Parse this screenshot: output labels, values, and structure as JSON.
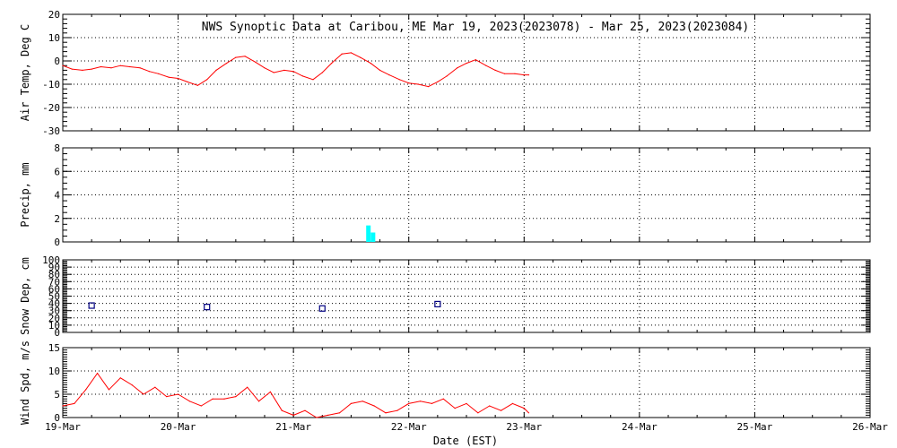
{
  "title": "NWS Synoptic Data at Caribou, ME   Mar 19, 2023(2023078) - Mar 25, 2023(2023084)",
  "xlabel": "Date (EST)",
  "x_ticks": [
    "19-Mar",
    "20-Mar",
    "21-Mar",
    "22-Mar",
    "23-Mar",
    "24-Mar",
    "25-Mar",
    "26-Mar"
  ],
  "colors": {
    "air_temp": "#ff0000",
    "precip": "#00ffff",
    "snow_depth": "#000080",
    "wind": "#ff0000",
    "grid": "#000000"
  },
  "chart_data": [
    {
      "type": "line",
      "ylabel": "Air Temp, Deg C",
      "ylim": [
        -30,
        20
      ],
      "yticks": [
        -30,
        -20,
        -10,
        0,
        10,
        20
      ],
      "grid": "dotted",
      "x_unit": "days since 19-Mar 00:00 EST",
      "x": [
        0,
        0.08,
        0.17,
        0.25,
        0.33,
        0.42,
        0.5,
        0.58,
        0.67,
        0.75,
        0.83,
        0.92,
        1.0,
        1.08,
        1.17,
        1.25,
        1.33,
        1.42,
        1.5,
        1.58,
        1.67,
        1.75,
        1.83,
        1.92,
        2.0,
        2.08,
        2.17,
        2.25,
        2.33,
        2.42,
        2.5,
        2.58,
        2.67,
        2.75,
        2.83,
        2.92,
        3.0,
        3.08,
        3.17,
        3.25,
        3.33,
        3.42,
        3.5,
        3.58,
        3.67,
        3.75,
        3.83,
        3.92,
        4.0,
        4.04
      ],
      "values": [
        -2,
        -3.5,
        -4,
        -3.5,
        -2.5,
        -3,
        -2,
        -2.5,
        -3,
        -4.5,
        -5.5,
        -7,
        -7.5,
        -9,
        -10.5,
        -8,
        -4,
        -1,
        1.5,
        2,
        -0.5,
        -3,
        -5,
        -4,
        -4.5,
        -6.5,
        -8,
        -5,
        -1,
        3,
        3.5,
        1.5,
        -1,
        -4,
        -6,
        -8,
        -9.5,
        -10,
        -11,
        -9,
        -6.5,
        -3,
        -1,
        0.5,
        -2,
        -4,
        -5.5,
        -5.5,
        -6,
        -6
      ],
      "series_name": "Air Temp"
    },
    {
      "type": "bar",
      "ylabel": "Precip, mm",
      "ylim": [
        0,
        8
      ],
      "yticks": [
        0,
        2,
        4,
        6,
        8
      ],
      "grid": "dotted",
      "x_unit": "days since 19-Mar 00:00 EST",
      "x": [
        2.65,
        2.69
      ],
      "values": [
        1.4,
        0.8
      ],
      "series_name": "Precip"
    },
    {
      "type": "scatter",
      "ylabel": "Snow Dep, cm",
      "ylim": [
        0,
        100
      ],
      "yticks": [
        0,
        10,
        20,
        30,
        40,
        50,
        60,
        70,
        80,
        90,
        100
      ],
      "grid": "dotted",
      "x_unit": "days since 19-Mar 00:00 EST",
      "x": [
        0.25,
        1.25,
        2.25,
        3.25
      ],
      "values": [
        37,
        35,
        33,
        39
      ],
      "series_name": "Snow Depth"
    },
    {
      "type": "line",
      "ylabel": "Wind Spd, m/s",
      "ylim": [
        0,
        15
      ],
      "yticks": [
        0,
        5,
        10,
        15
      ],
      "grid": "dotted",
      "x_unit": "days since 19-Mar 00:00 EST",
      "x": [
        0,
        0.1,
        0.2,
        0.3,
        0.4,
        0.5,
        0.6,
        0.7,
        0.8,
        0.9,
        1.0,
        1.1,
        1.2,
        1.3,
        1.4,
        1.5,
        1.6,
        1.7,
        1.8,
        1.9,
        2.0,
        2.1,
        2.2,
        2.3,
        2.4,
        2.5,
        2.6,
        2.7,
        2.8,
        2.9,
        3.0,
        3.1,
        3.2,
        3.3,
        3.4,
        3.5,
        3.6,
        3.7,
        3.8,
        3.9,
        4.0,
        4.04
      ],
      "values": [
        2.5,
        3,
        6,
        9.5,
        6,
        8.5,
        7,
        5,
        6.5,
        4.5,
        5,
        3.5,
        2.5,
        4,
        4,
        4.5,
        6.5,
        3.5,
        5.5,
        1.5,
        0.5,
        1.5,
        0,
        0.5,
        1,
        3,
        3.5,
        2.5,
        1,
        1.5,
        3,
        3.5,
        3,
        4,
        2,
        3,
        1,
        2.5,
        1.5,
        3,
        2,
        1
      ],
      "series_name": "Wind Speed"
    }
  ]
}
